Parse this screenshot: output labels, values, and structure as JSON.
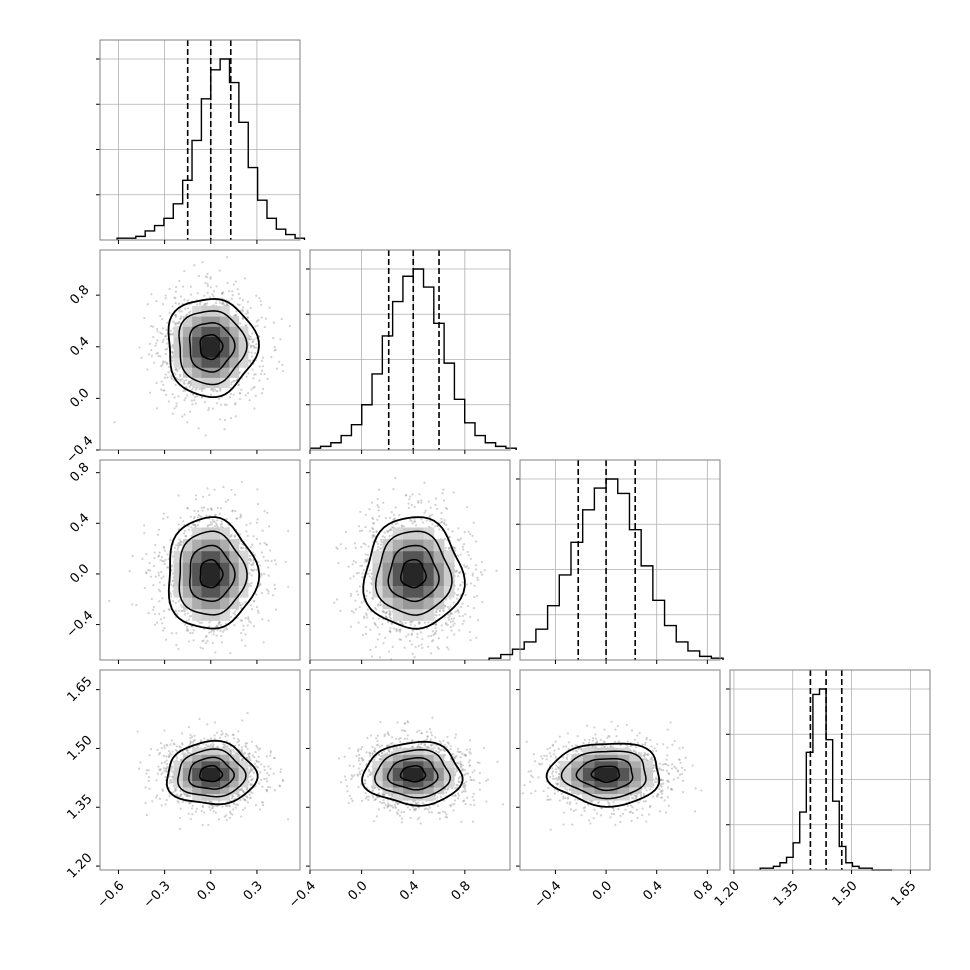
{
  "chart_data": {
    "type": "corner",
    "grid": true,
    "parameters": [
      {
        "index": 0,
        "median": 0.0,
        "q16": -0.15,
        "q84": 0.13,
        "sigma": 0.145,
        "lim": [
          -0.72,
          0.58
        ],
        "ticks": [
          -0.6,
          -0.3,
          0.0,
          0.3
        ],
        "tick_labels": [
          "−0.6",
          "−0.3",
          "0.0",
          "0.3"
        ],
        "hist": [
          0.01,
          0.01,
          0.02,
          0.05,
          0.08,
          0.12,
          0.2,
          0.33,
          0.55,
          0.78,
          0.94,
          1.0,
          0.87,
          0.65,
          0.4,
          0.22,
          0.12,
          0.06,
          0.03,
          0.01
        ]
      },
      {
        "index": 1,
        "median": 0.4,
        "q16": 0.21,
        "q84": 0.6,
        "sigma": 0.19,
        "lim": [
          -0.4,
          1.15
        ],
        "ticks": [
          -0.4,
          0.0,
          0.4,
          0.8
        ],
        "tick_labels": [
          "−0.4",
          "0.0",
          "0.4",
          "0.8"
        ],
        "hist": [
          0.01,
          0.02,
          0.04,
          0.08,
          0.14,
          0.25,
          0.42,
          0.63,
          0.82,
          0.96,
          1.0,
          0.9,
          0.7,
          0.48,
          0.28,
          0.15,
          0.08,
          0.04,
          0.02,
          0.01
        ]
      },
      {
        "index": 2,
        "median": 0.0,
        "q16": -0.22,
        "q84": 0.23,
        "sigma": 0.22,
        "lim": [
          -0.68,
          0.9
        ],
        "ticks": [
          -0.4,
          0.0,
          0.4,
          0.8
        ],
        "tick_labels": [
          "−0.4",
          "0.0",
          "0.4",
          "0.8"
        ],
        "hist": [
          0.01,
          0.03,
          0.06,
          0.1,
          0.17,
          0.3,
          0.47,
          0.65,
          0.83,
          0.95,
          1.0,
          0.92,
          0.72,
          0.52,
          0.33,
          0.19,
          0.1,
          0.05,
          0.02,
          0.01
        ]
      },
      {
        "index": 3,
        "median": 1.435,
        "q16": 1.395,
        "q84": 1.475,
        "sigma": 0.04,
        "lim": [
          1.19,
          1.7
        ],
        "ticks": [
          1.2,
          1.35,
          1.5,
          1.65
        ],
        "tick_labels": [
          "1.20",
          "1.35",
          "1.50",
          "1.65"
        ],
        "hist": [
          0.01,
          0.01,
          0.02,
          0.04,
          0.07,
          0.15,
          0.32,
          0.65,
          0.97,
          1.0,
          0.72,
          0.38,
          0.13,
          0.04,
          0.02,
          0.01,
          0.01,
          0.0,
          0.0,
          0.0
        ]
      }
    ]
  }
}
